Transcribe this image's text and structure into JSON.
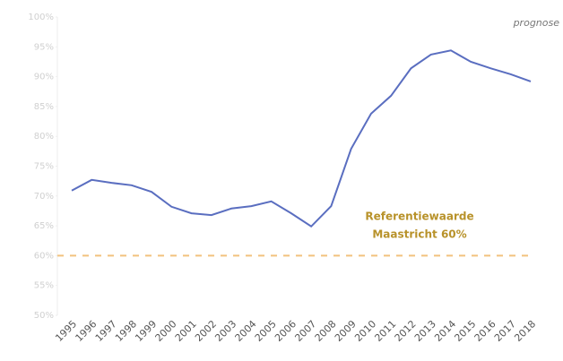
{
  "chart_data": {
    "type": "line",
    "categories": [
      "1995",
      "1996",
      "1997",
      "1998",
      "1999",
      "2000",
      "2001",
      "2002",
      "2003",
      "2004",
      "2005",
      "2006",
      "2007",
      "2008",
      "2009",
      "2010",
      "2011",
      "2012",
      "2013",
      "2014",
      "2015",
      "2016",
      "2017",
      "2018"
    ],
    "series": [
      {
        "color": "#5a6ec0",
        "values": [
          70.9,
          72.7,
          72.2,
          71.8,
          70.7,
          68.2,
          67.1,
          66.8,
          67.9,
          68.3,
          69.1,
          67.1,
          64.9,
          68.3,
          77.9,
          83.8,
          86.8,
          91.4,
          93.7,
          94.4,
          92.5,
          91.4,
          90.4,
          89.2
        ]
      }
    ],
    "ylim": [
      50,
      100
    ],
    "yticks": [
      {
        "value": 50,
        "label": "50%"
      },
      {
        "value": 55,
        "label": "55%"
      },
      {
        "value": 60,
        "label": "60%"
      },
      {
        "value": 65,
        "label": "65%"
      },
      {
        "value": 70,
        "label": "70%"
      },
      {
        "value": 75,
        "label": "75%"
      },
      {
        "value": 80,
        "label": "80%"
      },
      {
        "value": 85,
        "label": "85%"
      },
      {
        "value": 90,
        "label": "90%"
      },
      {
        "value": 95,
        "label": "95%"
      },
      {
        "value": 100,
        "label": "100%"
      }
    ],
    "reference_line": {
      "value": 60,
      "color": "#f2c27e",
      "label_lines": [
        "Referentiewaarde",
        "Maastricht 60%"
      ]
    },
    "annotation": "prognose"
  }
}
